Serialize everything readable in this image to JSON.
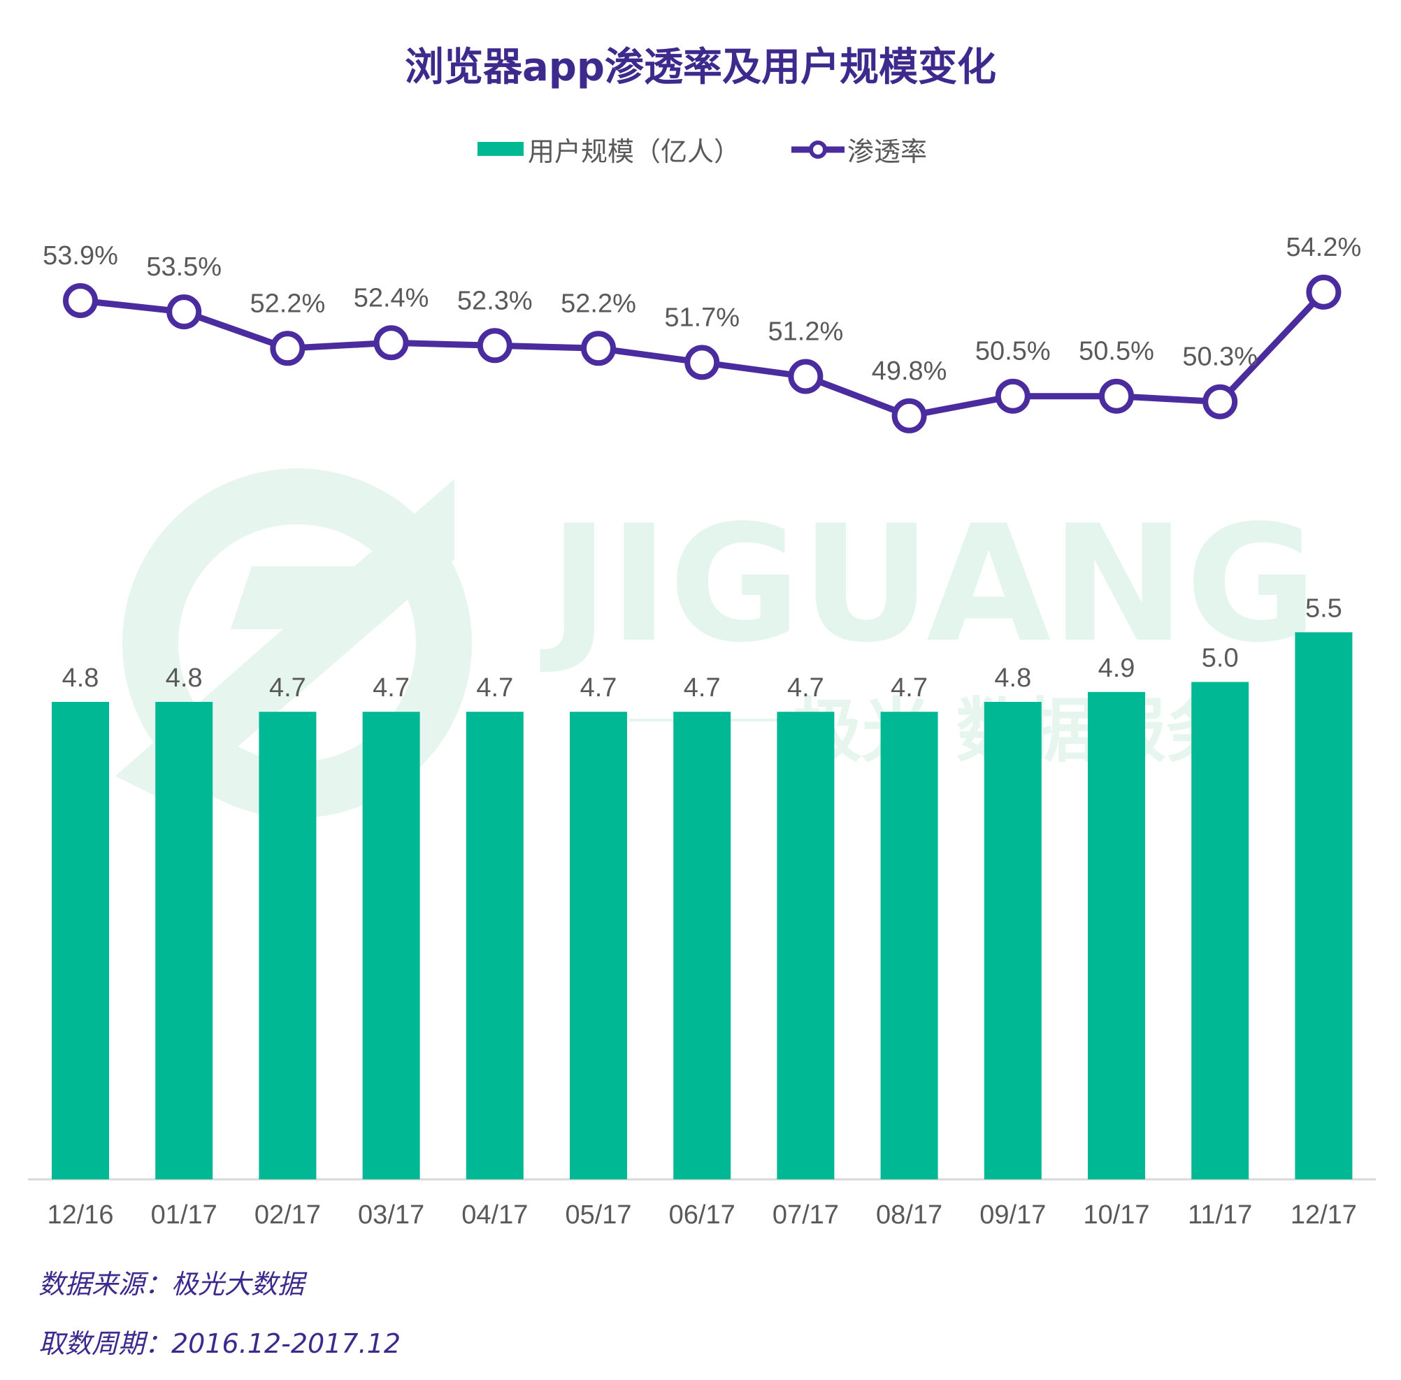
{
  "title": "浏览器app渗透率及用户规模变化",
  "legend": {
    "bar_label": "用户规模（亿人）",
    "line_label": "渗透率"
  },
  "watermark": {
    "brand": "JIGUANG",
    "sub": "极光 数据服务"
  },
  "footer": {
    "source": "数据来源：极光大数据",
    "period": "取数周期：2016.12-2017.12"
  },
  "colors": {
    "title": "#3d2a8c",
    "bar": "#00b894",
    "line": "#4b2c9e",
    "label": "#595959",
    "footer": "#3d2a8c",
    "axis": "#d9d9d9",
    "watermark": "#e3f5ec"
  },
  "chart_data": {
    "type": "bar+line",
    "title": "浏览器app渗透率及用户规模变化",
    "categories": [
      "12/16",
      "01/17",
      "02/17",
      "03/17",
      "04/17",
      "05/17",
      "06/17",
      "07/17",
      "08/17",
      "09/17",
      "10/17",
      "11/17",
      "12/17"
    ],
    "series": [
      {
        "name": "用户规模（亿人）",
        "type": "bar",
        "values": [
          4.8,
          4.8,
          4.7,
          4.7,
          4.7,
          4.7,
          4.7,
          4.7,
          4.7,
          4.8,
          4.9,
          5.0,
          5.5
        ],
        "labels": [
          "4.8",
          "4.8",
          "4.7",
          "4.7",
          "4.7",
          "4.7",
          "4.7",
          "4.7",
          "4.7",
          "4.8",
          "4.9",
          "5.0",
          "5.5"
        ]
      },
      {
        "name": "渗透率",
        "type": "line",
        "values": [
          53.9,
          53.5,
          52.2,
          52.4,
          52.3,
          52.2,
          51.7,
          51.2,
          49.8,
          50.5,
          50.5,
          50.3,
          54.2
        ],
        "labels": [
          "53.9%",
          "53.5%",
          "52.2%",
          "52.4%",
          "52.3%",
          "52.2%",
          "51.7%",
          "51.2%",
          "49.8%",
          "50.5%",
          "50.5%",
          "50.3%",
          "54.2%"
        ]
      }
    ],
    "legend_position": "top-center",
    "grid": false
  }
}
